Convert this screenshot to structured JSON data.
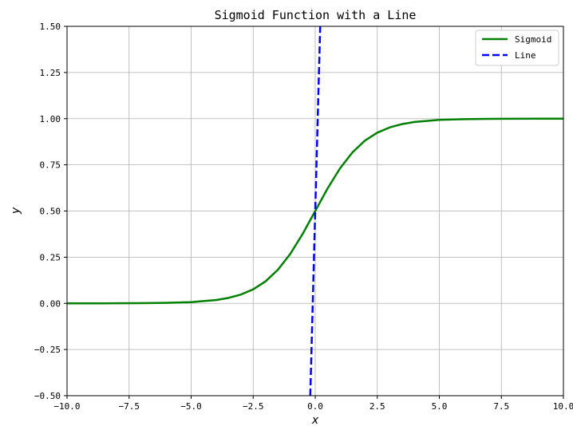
{
  "chart_data": {
    "type": "line",
    "title": "Sigmoid Function with a Line",
    "xlabel": "x",
    "ylabel": "y",
    "xlim": [
      -10.0,
      10.0
    ],
    "ylim": [
      -0.5,
      1.5
    ],
    "x_ticks": [
      -10.0,
      -7.5,
      -5.0,
      -2.5,
      0.0,
      2.5,
      5.0,
      7.5,
      10.0
    ],
    "x_tick_labels": [
      "−10.0",
      "−7.5",
      "−5.0",
      "−2.5",
      "0.0",
      "2.5",
      "5.0",
      "7.5",
      "10.0"
    ],
    "y_ticks": [
      -0.5,
      -0.25,
      0.0,
      0.25,
      0.5,
      0.75,
      1.0,
      1.25,
      1.5
    ],
    "y_tick_labels": [
      "−0.50",
      "−0.25",
      "0.00",
      "0.25",
      "0.50",
      "0.75",
      "1.00",
      "1.25",
      "1.50"
    ],
    "grid": true,
    "legend_position": "top-right",
    "series": [
      {
        "name": "Sigmoid",
        "color": "#008000",
        "style": "solid",
        "x": [
          -10,
          -9,
          -8,
          -7,
          -6,
          -5,
          -4,
          -3.5,
          -3,
          -2.5,
          -2,
          -1.5,
          -1,
          -0.5,
          0,
          0.5,
          1,
          1.5,
          2,
          2.5,
          3,
          3.5,
          4,
          5,
          6,
          7,
          8,
          9,
          10
        ],
        "y": [
          0.0,
          0.0001,
          0.0003,
          0.0009,
          0.0025,
          0.0067,
          0.018,
          0.0293,
          0.0474,
          0.0759,
          0.1192,
          0.1824,
          0.2689,
          0.3775,
          0.5,
          0.6225,
          0.7311,
          0.8176,
          0.8808,
          0.9241,
          0.9526,
          0.9707,
          0.982,
          0.9933,
          0.9975,
          0.9991,
          0.9997,
          0.9999,
          1.0
        ]
      },
      {
        "name": "Line",
        "color": "#0000ff",
        "style": "dashed",
        "x": [
          -0.2,
          0.2
        ],
        "y": [
          -0.5,
          1.5
        ]
      }
    ]
  }
}
